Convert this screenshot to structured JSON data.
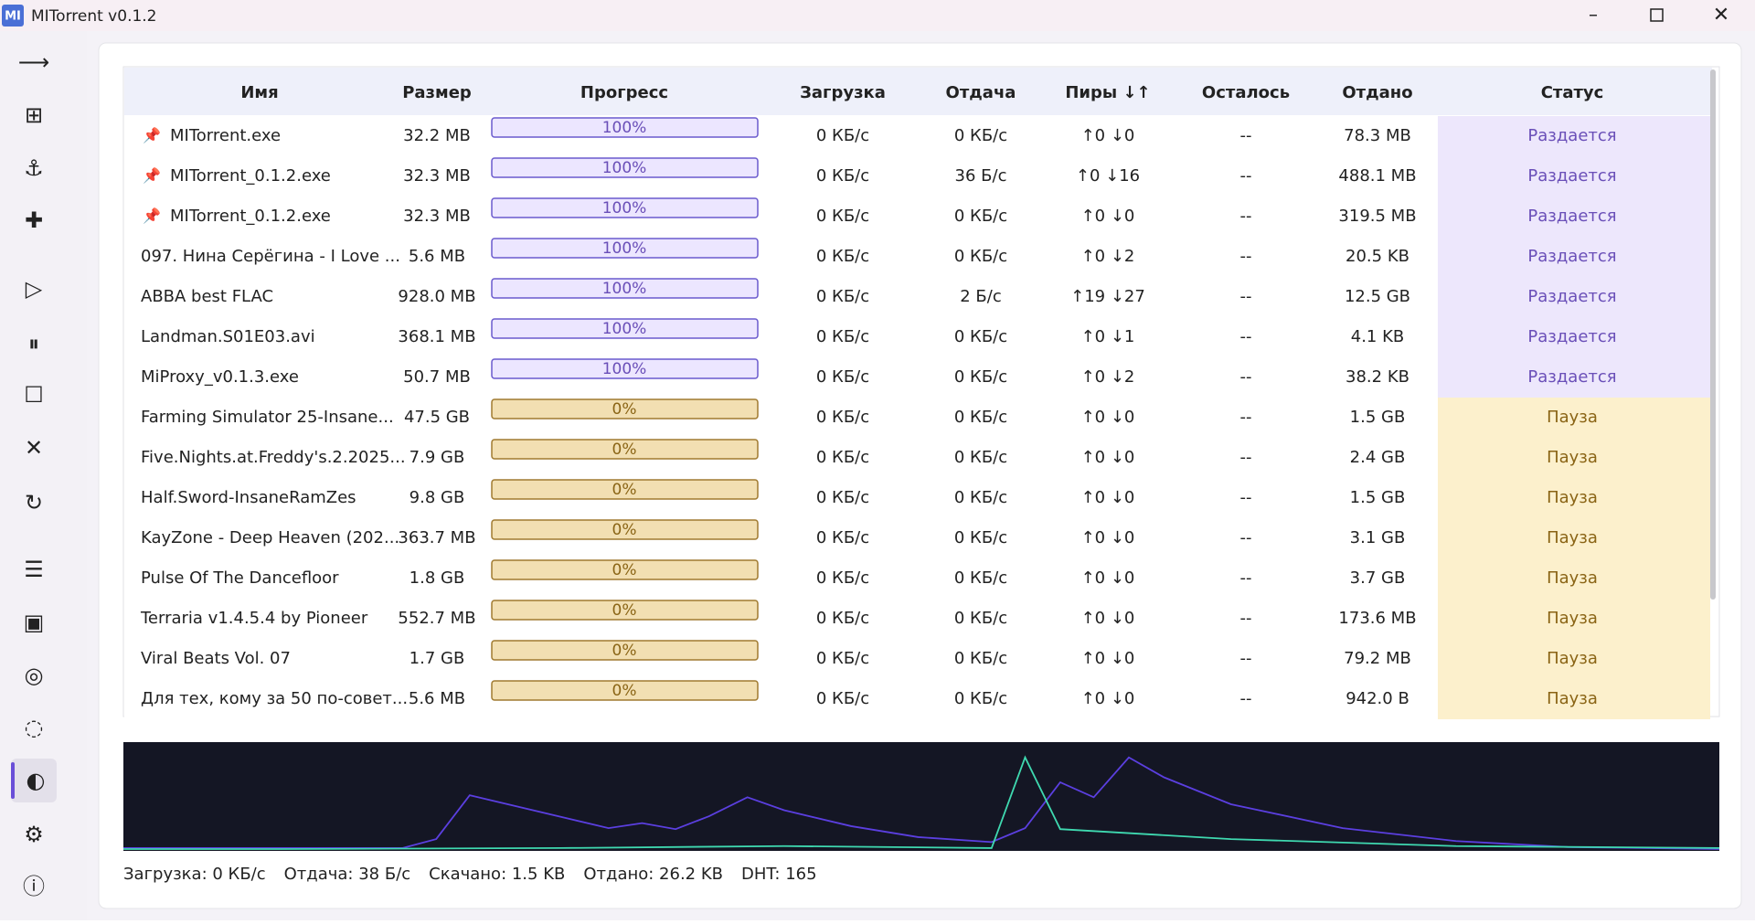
{
  "window": {
    "logo": "MI",
    "title": "MITorrent v0.1.2"
  },
  "table": {
    "columns": [
      "Имя",
      "Размер",
      "Прогресс",
      "Загрузка",
      "Отдача",
      "Пиры ↓↑",
      "Осталось",
      "Отдано",
      "Статус"
    ],
    "rows": [
      {
        "pinned": true,
        "color": "purple",
        "cells": [
          "MITorrent.exe",
          "32.2 MB",
          "100%",
          "0 КБ/с",
          "0 КБ/с",
          "↑0 ↓0",
          "--",
          "78.3 MB",
          "Раздается"
        ]
      },
      {
        "pinned": true,
        "color": "purple",
        "cells": [
          "MITorrent_0.1.2.exe",
          "32.3 MB",
          "100%",
          "0 КБ/с",
          "36 Б/с",
          "↑0 ↓16",
          "--",
          "488.1 MB",
          "Раздается"
        ]
      },
      {
        "pinned": true,
        "color": "purple",
        "cells": [
          "MITorrent_0.1.2.exe",
          "32.3 MB",
          "100%",
          "0 КБ/с",
          "0 КБ/с",
          "↑0 ↓0",
          "--",
          "319.5 MB",
          "Раздается"
        ]
      },
      {
        "pinned": false,
        "color": "purple",
        "cells": [
          "097. Нина Серёгина - I Love ...",
          "5.6 MB",
          "100%",
          "0 КБ/с",
          "0 КБ/с",
          "↑0 ↓2",
          "--",
          "20.5 KB",
          "Раздается"
        ]
      },
      {
        "pinned": false,
        "color": "purple",
        "cells": [
          "ABBA best FLAC",
          "928.0 MB",
          "100%",
          "0 КБ/с",
          "2 Б/с",
          "↑19 ↓27",
          "--",
          "12.5 GB",
          "Раздается"
        ]
      },
      {
        "pinned": false,
        "color": "purple",
        "cells": [
          "Landman.S01E03.avi",
          "368.1 MB",
          "100%",
          "0 КБ/с",
          "0 КБ/с",
          "↑0 ↓1",
          "--",
          "4.1 KB",
          "Раздается"
        ]
      },
      {
        "pinned": false,
        "color": "purple",
        "cells": [
          "MiProxy_v0.1.3.exe",
          "50.7 MB",
          "100%",
          "0 КБ/с",
          "0 КБ/с",
          "↑0 ↓2",
          "--",
          "38.2 KB",
          "Раздается"
        ]
      },
      {
        "pinned": false,
        "color": "tan",
        "cells": [
          "Farming Simulator 25-Insane...",
          "47.5 GB",
          "0%",
          "0 КБ/с",
          "0 КБ/с",
          "↑0 ↓0",
          "--",
          "1.5 GB",
          "Пауза"
        ]
      },
      {
        "pinned": false,
        "color": "tan",
        "cells": [
          "Five.Nights.at.Freddy's.2.2025...",
          "7.9 GB",
          "0%",
          "0 КБ/с",
          "0 КБ/с",
          "↑0 ↓0",
          "--",
          "2.4 GB",
          "Пауза"
        ]
      },
      {
        "pinned": false,
        "color": "tan",
        "cells": [
          "Half.Sword-InsaneRamZes",
          "9.8 GB",
          "0%",
          "0 КБ/с",
          "0 КБ/с",
          "↑0 ↓0",
          "--",
          "1.5 GB",
          "Пауза"
        ]
      },
      {
        "pinned": false,
        "color": "tan",
        "cells": [
          "KayZone - Deep Heaven (202...",
          "363.7 MB",
          "0%",
          "0 КБ/с",
          "0 КБ/с",
          "↑0 ↓0",
          "--",
          "3.1 GB",
          "Пауза"
        ]
      },
      {
        "pinned": false,
        "color": "tan",
        "cells": [
          "Pulse Of The Dancefloor",
          "1.8 GB",
          "0%",
          "0 КБ/с",
          "0 КБ/с",
          "↑0 ↓0",
          "--",
          "3.7 GB",
          "Пауза"
        ]
      },
      {
        "pinned": false,
        "color": "tan",
        "cells": [
          "Terraria v1.4.5.4 by Pioneer",
          "552.7 MB",
          "0%",
          "0 КБ/с",
          "0 КБ/с",
          "↑0 ↓0",
          "--",
          "173.6 MB",
          "Пауза"
        ]
      },
      {
        "pinned": false,
        "color": "tan",
        "cells": [
          "Viral Beats Vol. 07",
          "1.7 GB",
          "0%",
          "0 КБ/с",
          "0 КБ/с",
          "↑0 ↓0",
          "--",
          "79.2 MB",
          "Пауза"
        ]
      },
      {
        "pinned": false,
        "color": "tan",
        "cells": [
          "Для тех, кому за 50 по-совет...",
          "5.6 MB",
          "0%",
          "0 КБ/с",
          "0 КБ/с",
          "↑0 ↓0",
          "--",
          "942.0 B",
          "Пауза"
        ]
      }
    ]
  },
  "graph": {
    "ylim": [
      0,
      100
    ],
    "xlim": [
      0,
      100
    ],
    "series": [
      {
        "color": "#5b3fe0",
        "x": [
          0,
          17.5,
          19.6,
          21.7,
          30.4,
          32.5,
          34.6,
          36.7,
          39.1,
          41.4,
          45.6,
          49.8,
          54.4,
          56.5,
          58.7,
          60.8,
          63.0,
          65.2,
          69.4,
          76.4,
          83.5,
          90.5,
          100
        ],
        "values": [
          1,
          1,
          10,
          54,
          21,
          26,
          20,
          33,
          52,
          39,
          23,
          12,
          7,
          21,
          67,
          52,
          92,
          72,
          45,
          21,
          8,
          2,
          0
        ]
      },
      {
        "color": "#3fd9b0",
        "x": [
          0,
          9.8,
          27.4,
          41.4,
          54.4,
          56.5,
          58.7,
          69.4,
          83.5,
          100
        ],
        "values": [
          0,
          0,
          1,
          3,
          1,
          92,
          20,
          10,
          3,
          1
        ]
      }
    ]
  },
  "status_bar": [
    "Загрузка: 0 КБ/с",
    "Отдача: 38 Б/с",
    "Скачано: 1.5 KB",
    "Отдано: 26.2 KB",
    "DHT: 165"
  ]
}
